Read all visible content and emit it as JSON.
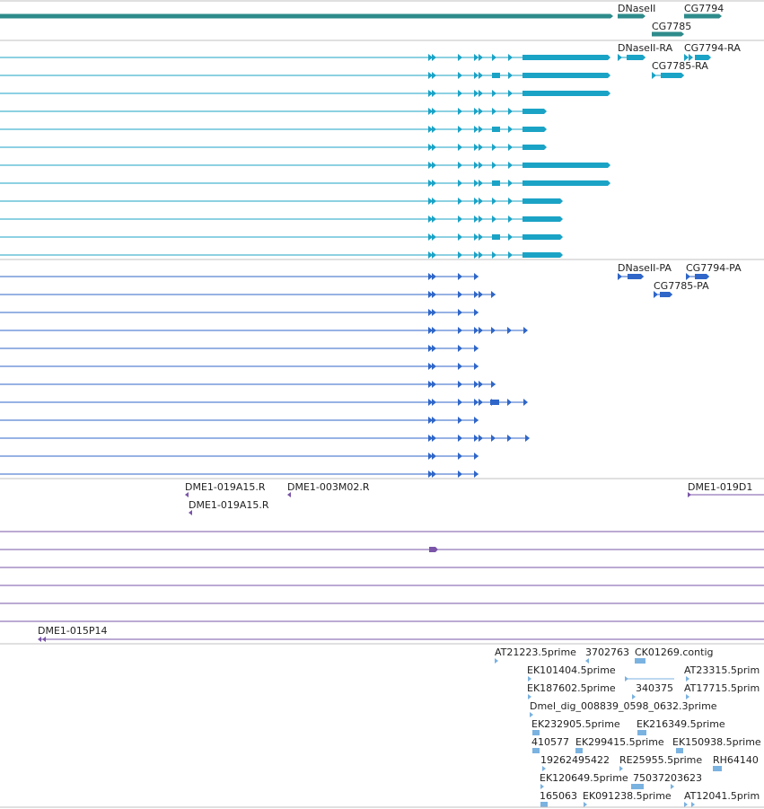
{
  "colors": {
    "gene": "#2e8b8b",
    "mrna": "#1ba3c6",
    "protein": "#2f66c8",
    "clone": "#7a55a8",
    "est": "#7ab2e0",
    "divider": "#c0c0c0",
    "label": "#222222"
  },
  "gene_track": {
    "labels": [
      "DNaseII",
      "CG7794",
      "CG7785"
    ]
  },
  "mrna_track": {
    "labels": [
      "DNaseII-RA",
      "CG7794-RA",
      "CG7785-RA"
    ]
  },
  "protein_track": {
    "labels": [
      "DNaseII-PA",
      "CG7794-PA",
      "CG7785-PA"
    ]
  },
  "clone_track": {
    "labels": [
      "DME1-019A15.R",
      "DME1-003M02.R",
      "DME1-019A15.R",
      "DME1-019D1",
      "DME1-015P14"
    ]
  },
  "est_track": {
    "labels": [
      "AT21223.5prime",
      "3702763",
      "CK01269.contig",
      "EK101404.5prime",
      "AT23315.5prim",
      "EK187602.5prime",
      "340375",
      "AT17715.5prim",
      "Dmel_dig_008839_0598_0632.3prime",
      "EK232905.5prime",
      "EK216349.5prime",
      "410577",
      "EK299415.5prime",
      "EK150938.5prime",
      "19262495422",
      "RE25955.5prime",
      "RH64140",
      "EK120649.5prime",
      "75037203623",
      "165063",
      "EK091238.5prime",
      "AT12041.5prim"
    ]
  }
}
